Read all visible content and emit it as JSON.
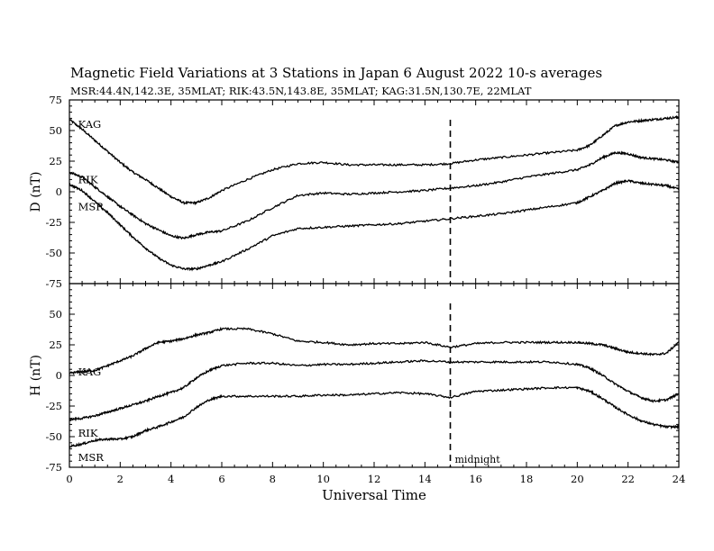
{
  "title": "Magnetic Field Variations at 3 Stations in Japan        6   August  2022     10-s averages",
  "subtitle": "MSR:44.4N,142.3E, 35MLAT;  RIK:43.5N,143.8E, 35MLAT;  KAG:31.5N,130.7E, 22MLAT",
  "xlabel": "Universal Time",
  "marker": {
    "x": 15,
    "label": "midnight"
  },
  "chart_data": [
    {
      "type": "line",
      "panel": "D",
      "ylabel": "D (nT)",
      "ylim": [
        -75,
        75
      ],
      "yticks": [
        75,
        50,
        25,
        0,
        -25,
        -50,
        -75
      ],
      "xlim": [
        0,
        24
      ],
      "xticks": [
        0,
        2,
        4,
        6,
        8,
        10,
        12,
        14,
        16,
        18,
        20,
        22,
        24
      ],
      "series": [
        {
          "name": "KAG",
          "label_at": [
            0.2,
            55
          ],
          "x": [
            0,
            0.5,
            1,
            1.5,
            2,
            2.5,
            3,
            3.5,
            4,
            4.5,
            5,
            5.5,
            6,
            7,
            8,
            9,
            10,
            11,
            12,
            13,
            14,
            15,
            16,
            17,
            18,
            19,
            20,
            20.5,
            21,
            21.5,
            22,
            22.5,
            23,
            23.5,
            24
          ],
          "values": [
            59,
            51,
            42,
            33,
            24,
            16,
            10,
            3,
            -4,
            -9,
            -9,
            -5,
            1,
            10,
            18,
            23,
            24,
            22,
            22,
            22,
            22,
            23,
            26,
            28,
            30,
            32,
            34,
            38,
            46,
            54,
            57,
            58,
            59,
            60,
            61
          ]
        },
        {
          "name": "RIK",
          "label_at": [
            0.2,
            10
          ],
          "x": [
            0,
            0.5,
            1,
            1.5,
            2,
            2.5,
            3,
            3.5,
            4,
            4.5,
            5,
            5.5,
            6,
            7,
            8,
            9,
            10,
            11,
            12,
            13,
            14,
            15,
            16,
            17,
            18,
            19,
            20,
            20.5,
            21,
            21.5,
            22,
            22.5,
            23,
            23.5,
            24
          ],
          "values": [
            16,
            12,
            4,
            -4,
            -12,
            -19,
            -26,
            -31,
            -36,
            -38,
            -35,
            -33,
            -32,
            -24,
            -13,
            -3,
            -1,
            -2,
            -1,
            0,
            1,
            3,
            5,
            8,
            12,
            15,
            18,
            22,
            28,
            32,
            31,
            28,
            27,
            26,
            24
          ]
        },
        {
          "name": "MSR",
          "label_at": [
            0.2,
            -12
          ],
          "x": [
            0,
            0.5,
            1,
            1.5,
            2,
            2.5,
            3,
            3.5,
            4,
            4.5,
            5,
            5.5,
            6,
            7,
            8,
            9,
            10,
            11,
            12,
            13,
            14,
            15,
            16,
            17,
            18,
            19,
            20,
            20.5,
            21,
            21.5,
            22,
            22.5,
            23,
            23.5,
            24
          ],
          "values": [
            6,
            1,
            -8,
            -17,
            -27,
            -37,
            -46,
            -54,
            -60,
            -63,
            -63,
            -60,
            -57,
            -47,
            -36,
            -30,
            -29,
            -28,
            -27,
            -26,
            -24,
            -22,
            -20,
            -18,
            -15,
            -12,
            -9,
            -4,
            1,
            7,
            9,
            7,
            6,
            5,
            2
          ]
        }
      ]
    },
    {
      "type": "line",
      "panel": "H",
      "ylabel": "H (nT)",
      "ylim": [
        -75,
        75
      ],
      "yticks": [
        75,
        50,
        25,
        0,
        -25,
        -50,
        -75
      ],
      "xlim": [
        0,
        24
      ],
      "xticks": [
        0,
        2,
        4,
        6,
        8,
        10,
        12,
        14,
        16,
        18,
        20,
        22,
        24
      ],
      "series": [
        {
          "name": "KAG",
          "label_at": [
            0.2,
            3
          ],
          "x": [
            0,
            0.5,
            1,
            1.5,
            2,
            2.5,
            3,
            3.5,
            4,
            4.5,
            5,
            5.5,
            6,
            7,
            8,
            9,
            10,
            11,
            12,
            13,
            14,
            15,
            16,
            17,
            18,
            19,
            20,
            20.5,
            21,
            21.5,
            22,
            22.5,
            23,
            23.5,
            24
          ],
          "values": [
            2,
            3,
            4,
            8,
            12,
            16,
            22,
            27,
            28,
            30,
            33,
            35,
            38,
            38,
            34,
            28,
            27,
            25,
            26,
            26,
            27,
            23,
            26,
            27,
            27,
            27,
            27,
            26,
            25,
            22,
            19,
            18,
            17,
            18,
            27
          ]
        },
        {
          "name": "RIK",
          "label_at": [
            0.2,
            -47
          ],
          "x": [
            0,
            0.5,
            1,
            1.5,
            2,
            2.5,
            3,
            3.5,
            4,
            4.5,
            5,
            5.5,
            6,
            7,
            8,
            9,
            10,
            11,
            12,
            13,
            14,
            15,
            16,
            17,
            18,
            19,
            20,
            20.5,
            21,
            21.5,
            22,
            22.5,
            23,
            23.5,
            24
          ],
          "values": [
            -36,
            -35,
            -33,
            -30,
            -27,
            -24,
            -21,
            -17,
            -14,
            -10,
            -2,
            4,
            8,
            10,
            10,
            8,
            9,
            9,
            10,
            11,
            12,
            11,
            11,
            11,
            11,
            11,
            9,
            6,
            0,
            -7,
            -13,
            -18,
            -21,
            -20,
            -15
          ]
        },
        {
          "name": "MSR",
          "label_at": [
            0.2,
            -67
          ],
          "x": [
            0,
            0.5,
            1,
            1.5,
            2,
            2.5,
            3,
            3.5,
            4,
            4.5,
            5,
            5.5,
            6,
            7,
            8,
            9,
            10,
            11,
            12,
            13,
            14,
            15,
            16,
            17,
            18,
            19,
            20,
            20.5,
            21,
            21.5,
            22,
            22.5,
            23,
            23.5,
            24
          ],
          "values": [
            -58,
            -56,
            -53,
            -52,
            -52,
            -50,
            -45,
            -42,
            -38,
            -34,
            -26,
            -20,
            -17,
            -17,
            -17,
            -17,
            -16,
            -16,
            -15,
            -14,
            -15,
            -18,
            -13,
            -12,
            -11,
            -10,
            -10,
            -13,
            -19,
            -26,
            -32,
            -37,
            -40,
            -42,
            -42
          ]
        }
      ]
    }
  ]
}
